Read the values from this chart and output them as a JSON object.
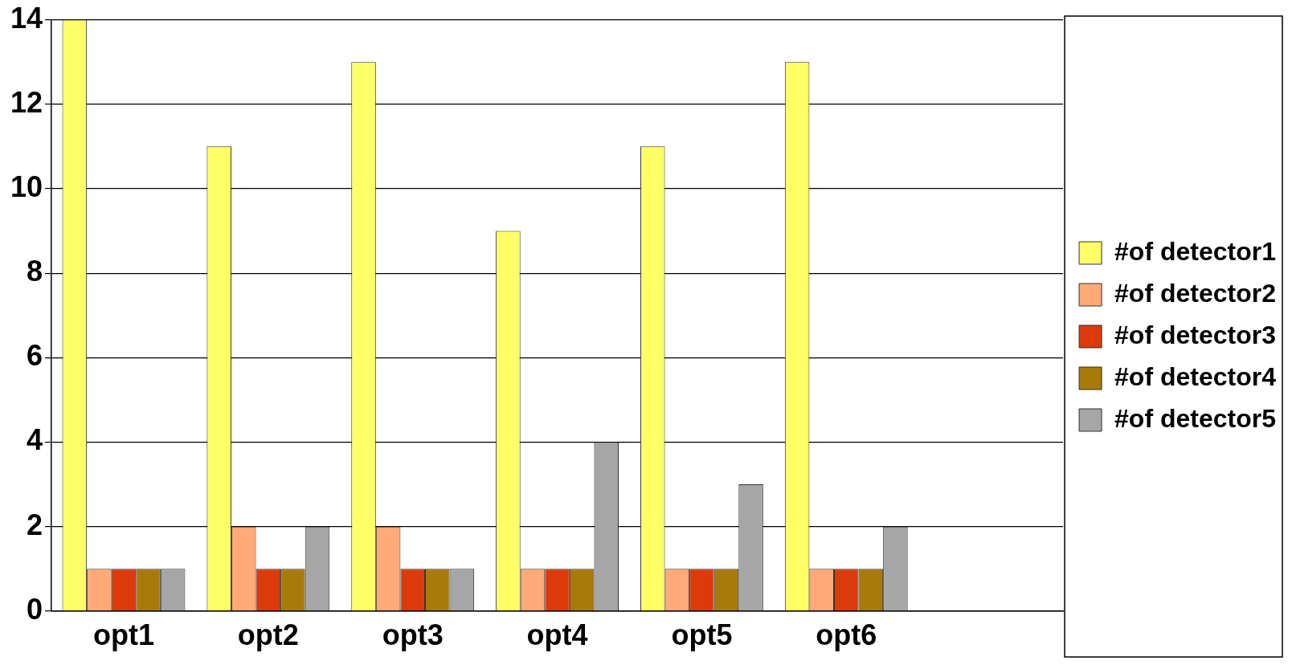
{
  "chart_data": {
    "type": "bar",
    "categories": [
      "opt1",
      "opt2",
      "opt3",
      "opt4",
      "opt5",
      "opt6",
      null
    ],
    "series": [
      {
        "name": "#of detector1",
        "color": "#ffff66",
        "values": [
          14,
          11,
          13,
          9,
          11,
          13,
          null
        ]
      },
      {
        "name": "#of detector2",
        "color": "#ffaa77",
        "values": [
          1,
          2,
          2,
          1,
          1,
          1,
          null
        ]
      },
      {
        "name": "#of detector3",
        "color": "#dd3a0a",
        "values": [
          1,
          1,
          1,
          1,
          1,
          1,
          null
        ]
      },
      {
        "name": "#of detector4",
        "color": "#a87a0a",
        "values": [
          1,
          1,
          1,
          1,
          1,
          1,
          null
        ]
      },
      {
        "name": "#of detector5",
        "color": "#a6a6a6",
        "values": [
          1,
          2,
          1,
          4,
          3,
          2,
          null
        ]
      }
    ],
    "ylim": [
      0,
      14
    ],
    "yticks": [
      0,
      2,
      4,
      6,
      8,
      10,
      12,
      14
    ],
    "grid": "y",
    "legend": "right"
  }
}
